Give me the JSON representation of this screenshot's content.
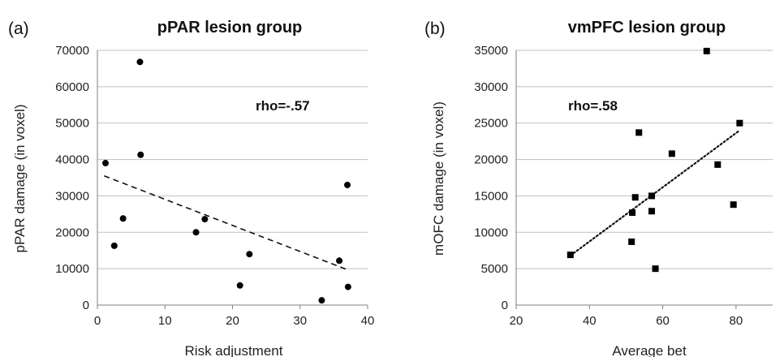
{
  "chart_data": [
    {
      "type": "scatter",
      "panel_label": "(a)",
      "title": "pPAR lesion group",
      "xlabel": "Risk adjustment",
      "ylabel": "pPAR damage (in voxel)",
      "xlim": [
        0,
        40
      ],
      "ylim": [
        0,
        70000
      ],
      "xticks": [
        "0",
        "10",
        "20",
        "30",
        "40"
      ],
      "yticks": [
        "0",
        "10000",
        "20000",
        "30000",
        "40000",
        "50000",
        "60000",
        "70000"
      ],
      "grid": "horizontal",
      "marker": "circle",
      "annotation": "rho=-.57",
      "points": [
        {
          "x": 1.2,
          "y": 39000
        },
        {
          "x": 2.5,
          "y": 16300
        },
        {
          "x": 3.8,
          "y": 23800
        },
        {
          "x": 6.3,
          "y": 66800
        },
        {
          "x": 6.4,
          "y": 41300
        },
        {
          "x": 14.6,
          "y": 20000
        },
        {
          "x": 15.9,
          "y": 23600
        },
        {
          "x": 21.1,
          "y": 5400
        },
        {
          "x": 22.5,
          "y": 14000
        },
        {
          "x": 33.2,
          "y": 1300
        },
        {
          "x": 35.8,
          "y": 12200
        },
        {
          "x": 37.0,
          "y": 33000
        },
        {
          "x": 37.1,
          "y": 5000
        }
      ],
      "trendline": {
        "style": "dashed",
        "x": [
          1,
          37.3
        ],
        "y": [
          35500,
          9500
        ]
      }
    },
    {
      "type": "scatter",
      "panel_label": "(b)",
      "title": "vmPFC lesion group",
      "xlabel": "Average bet",
      "ylabel": "mOFC damage (in voxel)",
      "xlim": [
        20,
        90
      ],
      "ylim": [
        0,
        35000
      ],
      "xticks": [
        "20",
        "40",
        "60",
        "80"
      ],
      "yticks": [
        "0",
        "5000",
        "10000",
        "15000",
        "20000",
        "25000",
        "30000",
        "35000"
      ],
      "grid": "horizontal",
      "marker": "square",
      "annotation": "rho=.58",
      "points": [
        {
          "x": 34.8,
          "y": 6900
        },
        {
          "x": 51.5,
          "y": 8700
        },
        {
          "x": 51.7,
          "y": 12700
        },
        {
          "x": 52.5,
          "y": 14800
        },
        {
          "x": 53.5,
          "y": 23700
        },
        {
          "x": 57.0,
          "y": 15000
        },
        {
          "x": 57.0,
          "y": 12900
        },
        {
          "x": 58.0,
          "y": 5000
        },
        {
          "x": 62.5,
          "y": 20800
        },
        {
          "x": 72.0,
          "y": 34900
        },
        {
          "x": 75.0,
          "y": 19300
        },
        {
          "x": 79.3,
          "y": 13800
        },
        {
          "x": 81.0,
          "y": 25000
        }
      ],
      "trendline": {
        "style": "dotted",
        "x": [
          34.8,
          81
        ],
        "y": [
          6800,
          24000
        ]
      }
    }
  ]
}
